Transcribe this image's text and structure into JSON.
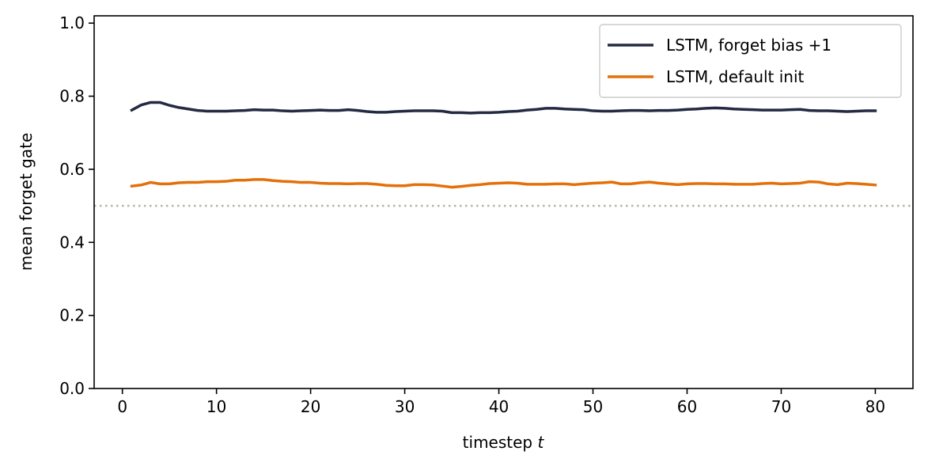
{
  "chart_data": {
    "type": "line",
    "xlabel": "timestep",
    "xlabel_var": "t",
    "ylabel": "mean forget gate",
    "xlim": [
      -3,
      84
    ],
    "ylim": [
      0.0,
      1.02
    ],
    "xticks": [
      0,
      10,
      20,
      30,
      40,
      50,
      60,
      70,
      80
    ],
    "yticks": [
      0.0,
      0.2,
      0.4,
      0.6,
      0.8,
      1.0
    ],
    "xtick_labels": [
      "0",
      "10",
      "20",
      "30",
      "40",
      "50",
      "60",
      "70",
      "80"
    ],
    "ytick_labels": [
      "0.0",
      "0.2",
      "0.4",
      "0.6",
      "0.8",
      "1.0"
    ],
    "grid": false,
    "legend_position": "top-right",
    "reference_line": {
      "y": 0.5,
      "style": "dotted",
      "color": "#b5b5a5"
    },
    "x": [
      1,
      2,
      3,
      4,
      5,
      6,
      7,
      8,
      9,
      10,
      11,
      12,
      13,
      14,
      15,
      16,
      17,
      18,
      19,
      20,
      21,
      22,
      23,
      24,
      25,
      26,
      27,
      28,
      29,
      30,
      31,
      32,
      33,
      34,
      35,
      36,
      37,
      38,
      39,
      40,
      41,
      42,
      43,
      44,
      45,
      46,
      47,
      48,
      49,
      50,
      51,
      52,
      53,
      54,
      55,
      56,
      57,
      58,
      59,
      60,
      61,
      62,
      63,
      64,
      65,
      66,
      67,
      68,
      69,
      70,
      71,
      72,
      73,
      74,
      75,
      76,
      77,
      78,
      79,
      80
    ],
    "series": [
      {
        "name": "LSTM, forget bias +1",
        "color": "#232a42",
        "values": [
          0.762,
          0.776,
          0.783,
          0.783,
          0.775,
          0.769,
          0.765,
          0.761,
          0.759,
          0.759,
          0.759,
          0.76,
          0.761,
          0.763,
          0.762,
          0.762,
          0.76,
          0.759,
          0.76,
          0.761,
          0.762,
          0.761,
          0.761,
          0.763,
          0.761,
          0.758,
          0.756,
          0.756,
          0.758,
          0.759,
          0.76,
          0.76,
          0.76,
          0.759,
          0.755,
          0.755,
          0.754,
          0.755,
          0.755,
          0.756,
          0.758,
          0.759,
          0.762,
          0.764,
          0.767,
          0.767,
          0.765,
          0.764,
          0.763,
          0.76,
          0.759,
          0.759,
          0.76,
          0.761,
          0.761,
          0.76,
          0.761,
          0.761,
          0.762,
          0.764,
          0.765,
          0.767,
          0.768,
          0.767,
          0.765,
          0.764,
          0.763,
          0.762,
          0.762,
          0.762,
          0.763,
          0.764,
          0.761,
          0.76,
          0.76,
          0.759,
          0.758,
          0.759,
          0.76,
          0.76
        ]
      },
      {
        "name": "LSTM, default init",
        "color": "#e37009",
        "values": [
          0.554,
          0.557,
          0.564,
          0.56,
          0.56,
          0.563,
          0.564,
          0.564,
          0.566,
          0.566,
          0.567,
          0.57,
          0.57,
          0.572,
          0.572,
          0.569,
          0.567,
          0.566,
          0.564,
          0.564,
          0.562,
          0.561,
          0.561,
          0.56,
          0.561,
          0.561,
          0.559,
          0.556,
          0.555,
          0.555,
          0.558,
          0.558,
          0.557,
          0.554,
          0.551,
          0.553,
          0.556,
          0.558,
          0.561,
          0.562,
          0.563,
          0.562,
          0.559,
          0.559,
          0.559,
          0.56,
          0.56,
          0.558,
          0.56,
          0.562,
          0.563,
          0.565,
          0.56,
          0.56,
          0.563,
          0.565,
          0.562,
          0.56,
          0.558,
          0.56,
          0.561,
          0.561,
          0.56,
          0.56,
          0.559,
          0.559,
          0.559,
          0.561,
          0.562,
          0.56,
          0.561,
          0.562,
          0.566,
          0.565,
          0.56,
          0.558,
          0.562,
          0.561,
          0.559,
          0.557
        ]
      }
    ]
  }
}
